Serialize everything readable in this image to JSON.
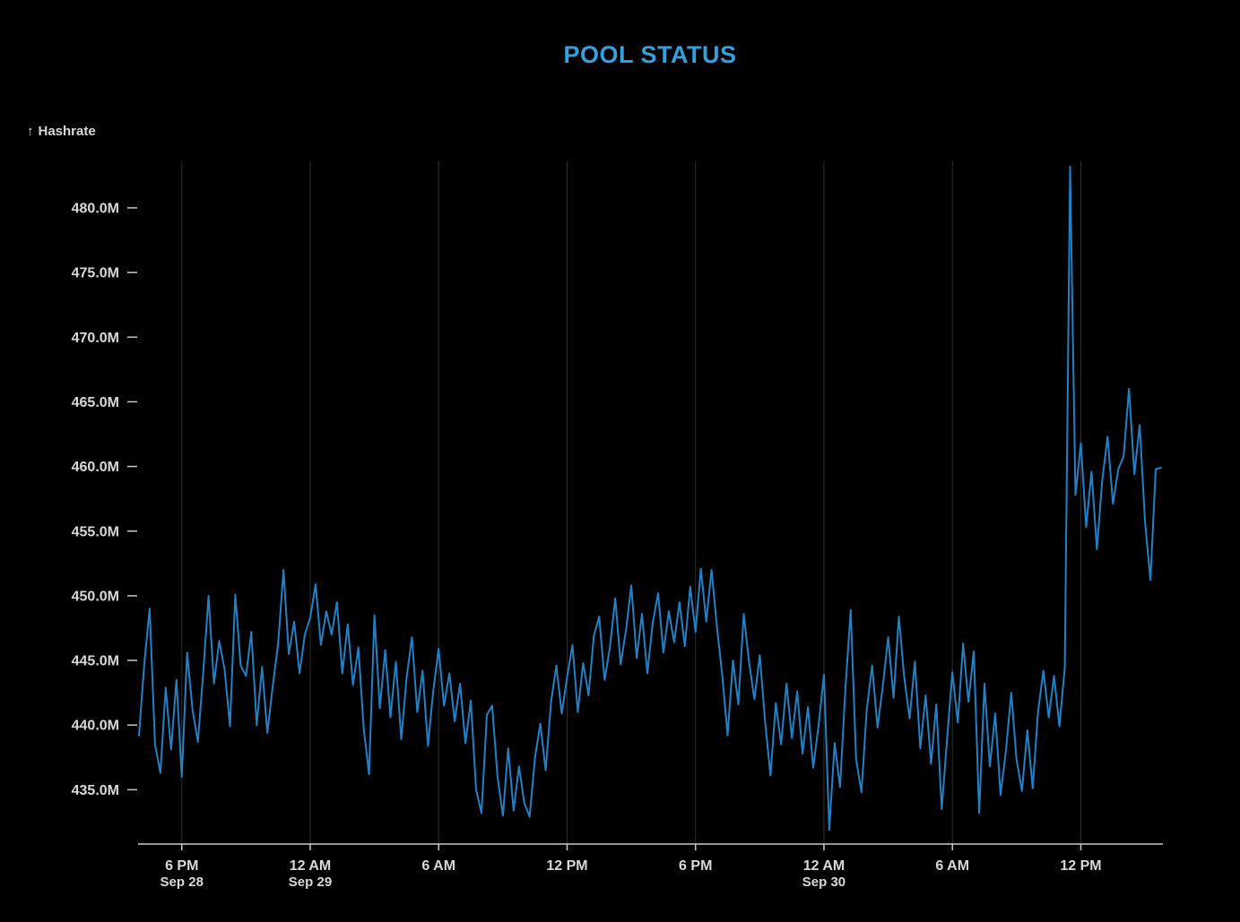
{
  "chart_data": {
    "type": "line",
    "title": "POOL STATUS",
    "y_axis_title_arrow": "↑",
    "y_axis_title": "Hashrate",
    "series_name": "Hashrate",
    "unit": "M",
    "point_interval_minutes": 15,
    "grid": "vertical",
    "legend": "none",
    "ylim": [
      430.8,
      483.6
    ],
    "values": [
      439.2,
      444.8,
      449.0,
      438.5,
      436.3,
      442.9,
      438.1,
      443.5,
      436.0,
      445.6,
      441.2,
      438.7,
      444.0,
      450.0,
      443.2,
      446.5,
      444.3,
      439.9,
      450.1,
      444.6,
      443.8,
      447.2,
      440.0,
      444.5,
      439.4,
      443.0,
      446.3,
      452.0,
      445.5,
      448.0,
      444.0,
      447.0,
      448.3,
      450.9,
      446.2,
      448.8,
      447.0,
      449.5,
      444.0,
      447.8,
      443.1,
      446.0,
      439.7,
      436.2,
      448.5,
      441.3,
      445.8,
      440.6,
      444.9,
      438.9,
      443.6,
      446.8,
      441.0,
      444.2,
      438.4,
      442.7,
      445.9,
      441.5,
      444.0,
      440.3,
      443.2,
      438.6,
      441.9,
      435.0,
      433.2,
      440.8,
      441.5,
      436.0,
      433.0,
      438.2,
      433.4,
      436.8,
      434.0,
      432.9,
      437.5,
      440.1,
      436.5,
      441.8,
      444.6,
      440.9,
      443.7,
      446.2,
      441.0,
      444.8,
      442.3,
      446.9,
      448.4,
      443.5,
      446.0,
      449.8,
      444.7,
      447.3,
      450.8,
      445.2,
      448.6,
      444.0,
      447.9,
      450.2,
      445.6,
      448.8,
      446.4,
      449.5,
      446.1,
      450.7,
      447.2,
      452.1,
      448.0,
      452.0,
      447.6,
      443.8,
      439.2,
      445.0,
      441.6,
      448.6,
      444.9,
      442.0,
      445.4,
      440.3,
      436.1,
      441.7,
      438.5,
      443.2,
      439.0,
      442.6,
      437.8,
      441.4,
      436.7,
      440.0,
      443.9,
      431.9,
      438.6,
      435.2,
      442.8,
      448.9,
      437.4,
      434.8,
      441.2,
      444.6,
      439.8,
      443.0,
      446.8,
      442.1,
      448.4,
      443.7,
      440.5,
      444.9,
      438.2,
      442.3,
      437.0,
      441.6,
      433.5,
      438.9,
      444.1,
      440.2,
      446.3,
      441.8,
      445.7,
      433.2,
      443.2,
      436.8,
      440.9,
      434.6,
      438.0,
      442.5,
      437.3,
      434.9,
      439.6,
      435.1,
      441.0,
      444.2,
      440.6,
      443.8,
      439.9,
      444.5,
      483.2,
      457.8,
      461.8,
      455.3,
      459.6,
      453.6,
      458.9,
      462.3,
      457.1,
      459.8,
      460.8,
      466.0,
      459.4,
      463.2,
      455.7,
      451.2,
      459.8,
      459.9
    ],
    "y_ticks": [
      {
        "value": 435,
        "label": "435.0M"
      },
      {
        "value": 440,
        "label": "440.0M"
      },
      {
        "value": 445,
        "label": "445.0M"
      },
      {
        "value": 450,
        "label": "450.0M"
      },
      {
        "value": 455,
        "label": "455.0M"
      },
      {
        "value": 460,
        "label": "460.0M"
      },
      {
        "value": 465,
        "label": "465.0M"
      },
      {
        "value": 470,
        "label": "470.0M"
      },
      {
        "value": 475,
        "label": "475.0M"
      },
      {
        "value": 480,
        "label": "480.0M"
      }
    ],
    "x_ticks": [
      {
        "index": 8,
        "label": "6 PM",
        "sublabel": "Sep 28"
      },
      {
        "index": 32,
        "label": "12 AM",
        "sublabel": "Sep 29"
      },
      {
        "index": 56,
        "label": "6 AM"
      },
      {
        "index": 80,
        "label": "12 PM"
      },
      {
        "index": 104,
        "label": "6 PM"
      },
      {
        "index": 128,
        "label": "12 AM",
        "sublabel": "Sep 30"
      },
      {
        "index": 152,
        "label": "6 AM"
      },
      {
        "index": 176,
        "label": "12 PM"
      }
    ],
    "colors": {
      "background": "#000000",
      "line": "#2580C3",
      "title": "#35A0DC",
      "axis_text": "#D8D8D8",
      "axis_line": "#C8C8C8",
      "grid": "#2E2E2E"
    }
  }
}
